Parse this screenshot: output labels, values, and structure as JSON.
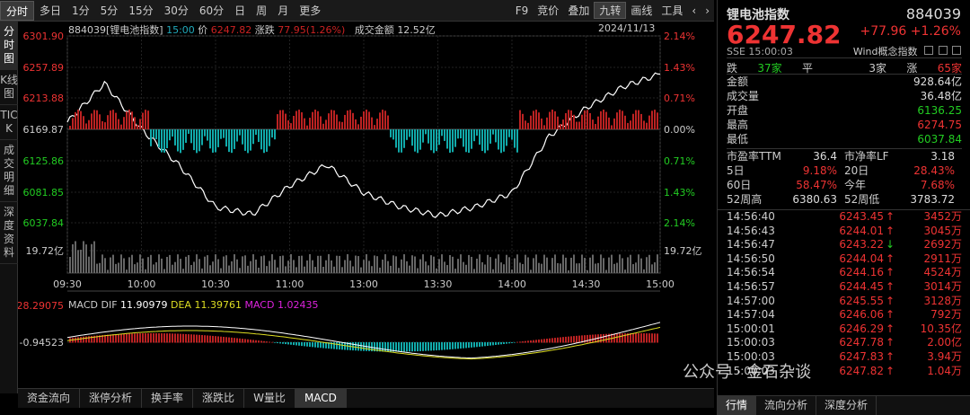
{
  "toolbar": {
    "left": [
      "分时",
      "多日",
      "1分",
      "5分",
      "15分",
      "30分",
      "60分",
      "日",
      "周",
      "月",
      "更多"
    ],
    "right": [
      "F9",
      "竞价",
      "叠加",
      "九转",
      "画线",
      "工具"
    ],
    "active_right": "九转"
  },
  "vtabs": [
    "分时图",
    "K线图",
    "TICK",
    "成交明细",
    "深度资料"
  ],
  "info": {
    "code_name": "884039[锂电池指数]",
    "time": "15:00",
    "price_label": "价",
    "price": "6247.82",
    "chg_label": "涨跌",
    "chg": "77.95(1.26%)",
    "amt_label": "成交金额",
    "amt": "12.52亿",
    "date": "2024/11/13"
  },
  "yaxis_left": [
    "6301.90",
    "6257.89",
    "6213.88",
    "6169.87",
    "6125.86",
    "6081.85",
    "6037.84",
    "19.72亿"
  ],
  "yaxis_right": [
    "2.14%",
    "1.43%",
    "0.71%",
    "0.00%",
    "0.71%",
    "1.43%",
    "2.14%",
    "19.72亿"
  ],
  "xaxis": [
    "09:30",
    "10:00",
    "10:30",
    "11:00",
    "13:00",
    "13:30",
    "14:00",
    "14:30",
    "15:00"
  ],
  "macd": {
    "top": "28.29075",
    "mid": "-0.94523",
    "label": "MACD",
    "dif_label": "DIF",
    "dif": "11.90979",
    "dea_label": "DEA",
    "dea": "11.39761",
    "macd_label": "MACD",
    "macd": "1.02435"
  },
  "bottom_tabs": [
    "资金流向",
    "涨停分析",
    "换手率",
    "涨跌比",
    "W量比",
    "MACD"
  ],
  "panel": {
    "title": "锂电池指数",
    "code": "884039",
    "price": "6247.82",
    "chg": "+77.96",
    "pct": "+1.26%",
    "sse": "SSE 15:00:03",
    "wind": "Wind概念指数",
    "adv": {
      "die_label": "跌",
      "die": "37家",
      "ping_label": "平",
      "ping": "3家",
      "zhang_label": "涨",
      "zhang": "65家"
    },
    "rows": [
      {
        "label": "金额",
        "value": "928.64亿"
      },
      {
        "label": "成交量",
        "value": "36.48亿"
      },
      {
        "label": "开盘",
        "value": "6136.25"
      },
      {
        "label": "最高",
        "value": "6274.75"
      },
      {
        "label": "最低",
        "value": "6037.84"
      }
    ],
    "grid": [
      [
        "市盈率TTM",
        "36.4",
        "市净率LF",
        "3.18"
      ],
      [
        "5日",
        "9.18%",
        "20日",
        "28.43%"
      ],
      [
        "60日",
        "58.47%",
        "今年",
        "7.68%"
      ],
      [
        "52周高",
        "6380.63",
        "52周低",
        "3783.72"
      ]
    ],
    "ticks": [
      [
        "14:56:40",
        "6243.45",
        "up",
        "3452万"
      ],
      [
        "14:56:43",
        "6244.01",
        "up",
        "3045万"
      ],
      [
        "14:56:47",
        "6243.22",
        "dn",
        "2692万"
      ],
      [
        "14:56:50",
        "6244.04",
        "up",
        "2911万"
      ],
      [
        "14:56:54",
        "6244.16",
        "up",
        "4524万"
      ],
      [
        "14:56:57",
        "6244.45",
        "up",
        "3014万"
      ],
      [
        "14:57:00",
        "6245.55",
        "up",
        "3128万"
      ],
      [
        "14:57:04",
        "6246.06",
        "up",
        "792万"
      ],
      [
        "15:00:01",
        "6246.29",
        "up",
        "10.35亿"
      ],
      [
        "15:00:03",
        "6247.78",
        "up",
        "2.00亿"
      ],
      [
        "15:00:03",
        "6247.83",
        "up",
        "3.94万"
      ],
      [
        "15:00:03",
        "6247.82",
        "up",
        "1.04万"
      ]
    ],
    "tabs": [
      "行情",
      "流向分析",
      "深度分析"
    ]
  },
  "watermark": "公众号 · 金石杂谈",
  "chart_data": {
    "type": "line",
    "title": "884039[锂电池指数]",
    "x": [
      "09:30",
      "09:45",
      "10:00",
      "10:15",
      "10:30",
      "10:45",
      "11:00",
      "11:15",
      "11:30/13:00",
      "13:15",
      "13:30",
      "13:45",
      "14:00",
      "14:15",
      "14:30",
      "14:45",
      "15:00"
    ],
    "series": [
      {
        "name": "价",
        "values": [
          6180,
          6235,
          6170,
          6120,
          6060,
          6050,
          6090,
          6120,
          6080,
          6060,
          6048,
          6060,
          6080,
          6160,
          6200,
          6230,
          6248
        ]
      }
    ],
    "ylim": [
      6037.84,
      6301.9
    ],
    "colors": {
      "price": "#ffffff",
      "up": "#e03030",
      "down": "#22b0b0",
      "dif": "#ffffff",
      "dea": "#e0e030",
      "macd": "#e030e0"
    }
  }
}
